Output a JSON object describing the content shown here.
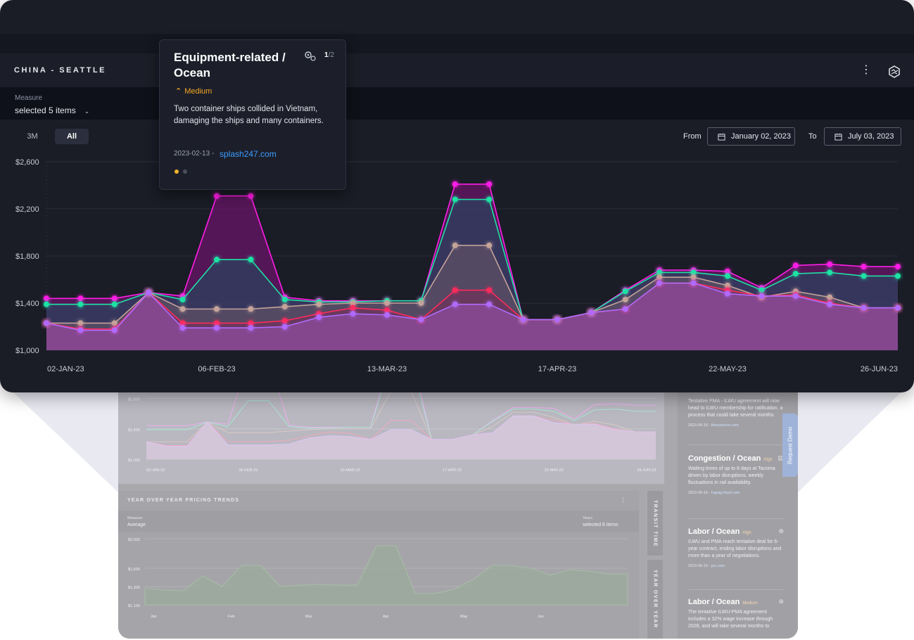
{
  "route": {
    "title": "CHINA - SEATTLE"
  },
  "measure": {
    "label": "Measure",
    "value": "selected 5 items"
  },
  "range": {
    "btn_3m": "3M",
    "btn_all": "All"
  },
  "dates": {
    "from_label": "From",
    "from_value": "January 02, 2023",
    "to_label": "To",
    "to_value": "July 03, 2023"
  },
  "tooltip": {
    "title": "Equipment-related / Ocean",
    "page_current": "1",
    "page_total": "/2",
    "severity": "Medium",
    "body": "Two container ships collided in Vietnam, damaging the ships and many containers.",
    "date": "2023-02-13",
    "dash": "-",
    "source": "splash247.com"
  },
  "colors": {
    "magenta": "#ff1ee6",
    "teal": "#1de2a4",
    "tan": "#c4a39a",
    "red": "#ff2a5c",
    "violet": "#b06bff"
  },
  "chart_data": {
    "type": "area",
    "xlabel": "",
    "ylabel": "",
    "ylim": [
      1000,
      2600
    ],
    "y_ticks": [
      "$1,000",
      "$1,400",
      "$1,800",
      "$2,200",
      "$2,600"
    ],
    "y_tick_values": [
      1000,
      1400,
      1800,
      2200,
      2600
    ],
    "x_tick_labels": [
      "02-JAN-23",
      "06-FEB-23",
      "13-MAR-23",
      "17-APR-23",
      "22-MAY-23",
      "26-JUN-23"
    ],
    "x": [
      "2023-01-02",
      "2023-01-09",
      "2023-01-16",
      "2023-01-23",
      "2023-01-30",
      "2023-02-06",
      "2023-02-13",
      "2023-02-20",
      "2023-02-27",
      "2023-03-06",
      "2023-03-13",
      "2023-03-20",
      "2023-03-27",
      "2023-04-03",
      "2023-04-10",
      "2023-04-17",
      "2023-04-24",
      "2023-05-01",
      "2023-05-08",
      "2023-05-15",
      "2023-05-22",
      "2023-05-29",
      "2023-06-05",
      "2023-06-12",
      "2023-06-19",
      "2023-06-26"
    ],
    "series": [
      {
        "color": "#ff1ee6",
        "values": [
          1440,
          1440,
          1440,
          1490,
          1460,
          2310,
          2310,
          1450,
          1420,
          1420,
          1420,
          1420,
          2410,
          2410,
          1260,
          1260,
          1320,
          1510,
          1680,
          1680,
          1670,
          1530,
          1720,
          1730,
          1710,
          1710
        ]
      },
      {
        "color": "#1de2a4",
        "values": [
          1390,
          1390,
          1390,
          1490,
          1430,
          1770,
          1770,
          1430,
          1410,
          1410,
          1420,
          1420,
          2280,
          2280,
          1260,
          1260,
          1320,
          1500,
          1660,
          1660,
          1630,
          1510,
          1650,
          1660,
          1630,
          1630
        ]
      },
      {
        "color": "#c4a39a",
        "values": [
          1230,
          1230,
          1230,
          1490,
          1350,
          1350,
          1350,
          1370,
          1390,
          1400,
          1400,
          1400,
          1890,
          1890,
          1260,
          1260,
          1320,
          1430,
          1620,
          1620,
          1550,
          1450,
          1500,
          1450,
          1360,
          1360
        ]
      },
      {
        "color": "#ff2a5c",
        "values": [
          1230,
          1180,
          1180,
          1490,
          1230,
          1230,
          1230,
          1250,
          1310,
          1360,
          1340,
          1260,
          1510,
          1510,
          1260,
          1260,
          1320,
          1350,
          1570,
          1570,
          1510,
          1460,
          1470,
          1400,
          1360,
          1360
        ]
      },
      {
        "color": "#b06bff",
        "values": [
          1230,
          1170,
          1170,
          1490,
          1190,
          1190,
          1190,
          1200,
          1280,
          1310,
          1300,
          1260,
          1390,
          1390,
          1260,
          1260,
          1320,
          1350,
          1570,
          1570,
          1480,
          1460,
          1460,
          1390,
          1360,
          1360
        ]
      }
    ]
  },
  "background": {
    "chart_y_ticks": [
      "$1,800",
      "$1,400",
      "$1,000"
    ],
    "chart_x_ticks": [
      "02-JAN-23",
      "06-FEB-23",
      "13-MAR-23",
      "17-APR-23",
      "22-MAY-23",
      "26-JUN-23"
    ],
    "yoy": {
      "title": "YEAR OVER YEAR PRICING TRENDS",
      "measure_label": "Measure",
      "measure_value": "Average",
      "years_label": "Years",
      "years_value": "selected 6 items",
      "y_ticks": [
        "$2,000",
        "$1,600",
        "$1,300",
        "$1,100"
      ],
      "x_ticks": [
        "Jan",
        "Feb",
        "Mar",
        "Apr",
        "May",
        "Jun"
      ]
    },
    "tabs": [
      "TRANSIT TIME",
      "YEAR OVER YEAR"
    ],
    "news": [
      {
        "title": "",
        "tag": "",
        "text": "Tentative PMA - ILWU agreement will now head to ILWU membership for ratification, a process that could take several months.",
        "date": "2023-06-16",
        "source": "thecustcon.com"
      },
      {
        "title": "Congestion / Ocean",
        "tag": "High",
        "text": "Waiting times of up to 8 days at Tacoma driven by labor disruptions, weekly fluctuations in rail availability.",
        "date": "2023-06-16",
        "source": "hapag-lloyd.com"
      },
      {
        "title": "Labor / Ocean",
        "tag": "High",
        "text": "ILWU and PMA reach tentative deal for 6-year contract, ending labor disruptions and more than a year of negotiations.",
        "date": "2023-06-15",
        "source": "joc.com"
      },
      {
        "title": "Labor / Ocean",
        "tag": "Medium",
        "text": "The tentative ILWU-PMA agreement includes a 32% wage increase through 2028, and will take several months to",
        "date": "",
        "source": ""
      }
    ],
    "request_demo": "Request Demo"
  }
}
